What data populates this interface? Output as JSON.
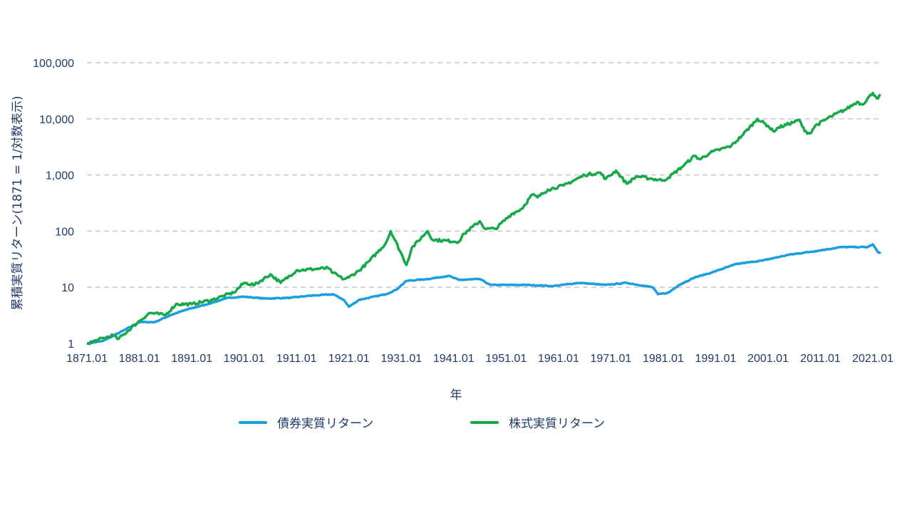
{
  "chart_data": {
    "type": "line",
    "title": "",
    "xlabel": "年",
    "ylabel": "累積実質リターン(1871 = 1/対数表示)",
    "y_scale": "log",
    "ylim": [
      1,
      100000
    ],
    "xlim": [
      1871,
      2022.5
    ],
    "y_ticks": [
      1,
      10,
      100,
      1000,
      10000,
      100000
    ],
    "y_tick_labels": [
      "1",
      "10",
      "100",
      "1,000",
      "10,000",
      "100,000"
    ],
    "x_tick_labels": [
      "1871.01",
      "1881.01",
      "1891.01",
      "1901.01",
      "1911.01",
      "1921.01",
      "1931.01",
      "1941.01",
      "1951.01",
      "1961.01",
      "1971.01",
      "1981.01",
      "1991.01",
      "2001.01",
      "2011.01",
      "2021.01"
    ],
    "grid": "horizontal dashed",
    "legend_position": "bottom",
    "series": [
      {
        "name": "債券実質リターン",
        "color": "#1a9ee0",
        "x": [
          1871,
          1874,
          1878,
          1881,
          1884,
          1887,
          1890,
          1894,
          1898,
          1901,
          1905,
          1910,
          1913,
          1918,
          1920,
          1921,
          1923,
          1928,
          1930,
          1932,
          1936,
          1940,
          1942,
          1946,
          1948,
          1955,
          1960,
          1965,
          1970,
          1974,
          1979,
          1980,
          1982,
          1984,
          1987,
          1990,
          1995,
          2000,
          2005,
          2010,
          2015,
          2020,
          2021,
          2022,
          2022.5
        ],
        "y": [
          1,
          1.1,
          1.7,
          2.4,
          2.4,
          3.2,
          4,
          5,
          6.5,
          6.8,
          6.3,
          6.5,
          7,
          7.5,
          6,
          4.5,
          6,
          7.5,
          9,
          13,
          14,
          16,
          13.5,
          14,
          11,
          11,
          10.5,
          12,
          11,
          12,
          10,
          7.5,
          8,
          11,
          15,
          18,
          26,
          30,
          38,
          44,
          52,
          52,
          58,
          42,
          40
        ]
      },
      {
        "name": "株式実質リターン",
        "color": "#17a84a",
        "x": [
          1871,
          1876,
          1877,
          1881,
          1883,
          1886,
          1888,
          1891,
          1895,
          1897,
          1899,
          1901,
          1903,
          1906,
          1908,
          1911,
          1917,
          1918,
          1920,
          1921,
          1923,
          1925,
          1928,
          1929,
          1932,
          1933,
          1936,
          1937,
          1942,
          1943,
          1946,
          1947,
          1949,
          1952,
          1954,
          1956,
          1957,
          1959,
          1962,
          1966,
          1969,
          1970,
          1972,
          1974,
          1976,
          1979,
          1981,
          1982,
          1985,
          1987,
          1988,
          1990,
          1994,
          1996,
          1999,
          2001,
          2002,
          2003,
          2007,
          2008,
          2009,
          2010,
          2013,
          2016,
          2018,
          2019,
          2021,
          2022,
          2022.5
        ],
        "y": [
          1,
          1.4,
          1.2,
          2.5,
          3.5,
          3.2,
          5,
          5,
          6,
          7,
          8,
          12,
          11,
          17,
          12,
          20,
          22,
          18,
          14,
          15,
          20,
          30,
          60,
          100,
          25,
          50,
          100,
          70,
          65,
          90,
          150,
          110,
          110,
          200,
          250,
          450,
          400,
          550,
          650,
          1000,
          1100,
          850,
          1200,
          700,
          950,
          850,
          800,
          900,
          1500,
          2200,
          1900,
          2500,
          3300,
          5000,
          10000,
          7500,
          6000,
          7000,
          9500,
          6000,
          5500,
          7500,
          11000,
          15000,
          20000,
          18000,
          29000,
          23000,
          27000
        ]
      }
    ]
  }
}
